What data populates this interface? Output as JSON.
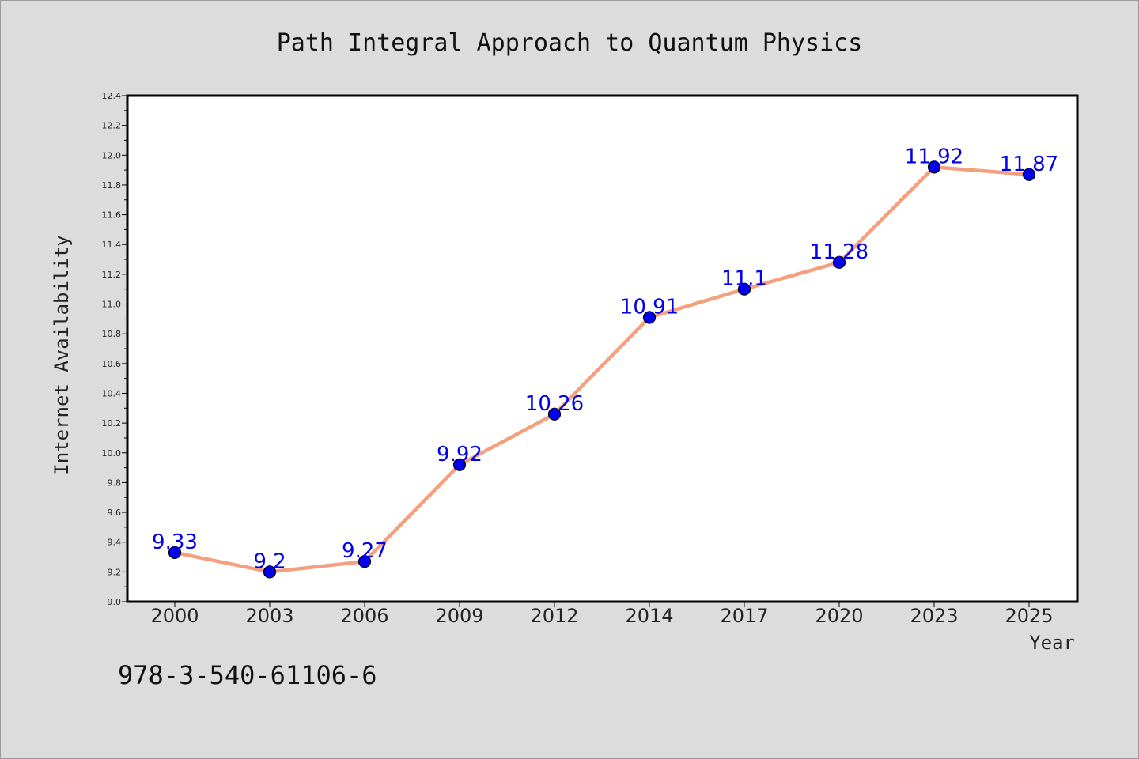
{
  "chart_data": {
    "type": "line",
    "title": "Path Integral Approach to Quantum Physics",
    "xlabel": "Year",
    "ylabel": "Internet Availability",
    "categories": [
      "2000",
      "2003",
      "2006",
      "2009",
      "2012",
      "2014",
      "2017",
      "2020",
      "2023",
      "2025"
    ],
    "series": [
      {
        "values": [
          9.33,
          9.2,
          9.27,
          9.92,
          10.26,
          10.91,
          11.1,
          11.28,
          11.92,
          11.87
        ],
        "data_labels": [
          "9.33",
          "9.2",
          "9.27",
          "9.92",
          "10.26",
          "10.91",
          "11.1",
          "11.28",
          "11.92",
          "11.87"
        ]
      }
    ],
    "ylim": [
      9.0,
      12.4
    ],
    "yticks": [
      "9.0",
      "9.2",
      "9.4",
      "9.6",
      "9.8",
      "10.0",
      "10.2",
      "10.4",
      "10.6",
      "10.8",
      "11.0",
      "11.2",
      "11.4",
      "11.6",
      "11.8",
      "12.0",
      "12.2",
      "12.4"
    ],
    "grid": false,
    "legend": "none",
    "colors": {
      "line": "#f4a07e",
      "marker": "#0000ee",
      "label": "#0000ee",
      "plot_bg": "#ffffff",
      "figure_bg": "#dcdcdc"
    }
  },
  "footer": {
    "isbn": "978-3-540-61106-6"
  }
}
